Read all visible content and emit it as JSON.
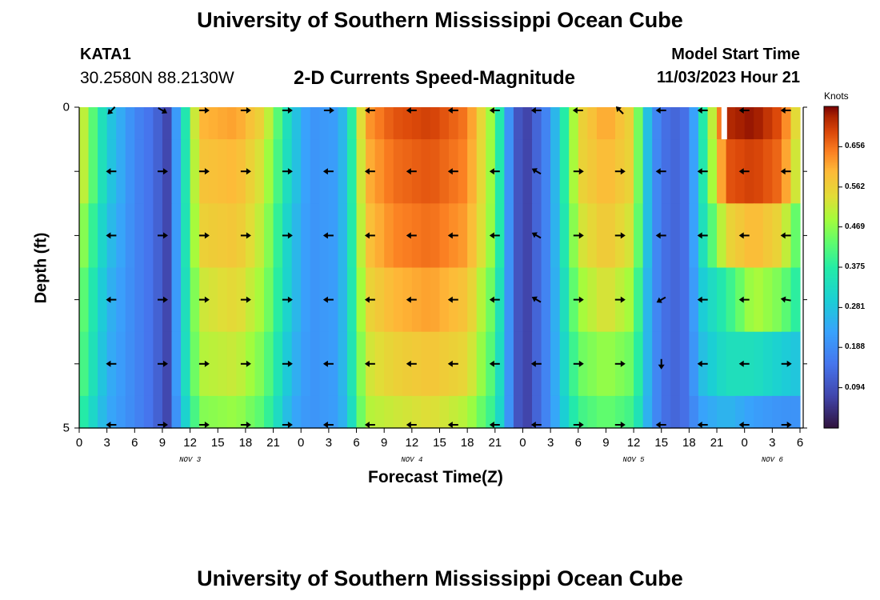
{
  "header": {
    "title": "University of Southern Mississippi Ocean Cube",
    "station_id": "KATA1",
    "station_coords": "30.2580N  88.2130W",
    "subtitle": "2-D Currents Speed-Magnitude",
    "model_start_label": "Model Start Time",
    "model_start_value": "11/03/2023 Hour 21"
  },
  "footer": {
    "title": "University of Southern Mississippi Ocean Cube"
  },
  "chart_data": {
    "type": "heatmap",
    "title": "2-D Currents Speed-Magnitude",
    "xlabel": "Forecast Time(Z)",
    "ylabel": "Depth (ft)",
    "x_hours_range": [
      0,
      78
    ],
    "x_tick_hours": [
      0,
      3,
      6,
      9,
      12,
      15,
      18,
      21,
      24,
      27,
      30,
      33,
      36,
      39,
      42,
      45,
      48,
      51,
      54,
      57,
      60,
      63,
      66,
      69,
      72,
      75,
      78
    ],
    "x_tick_labels": [
      "0",
      "3",
      "6",
      "9",
      "12",
      "15",
      "18",
      "21",
      "0",
      "3",
      "6",
      "9",
      "12",
      "15",
      "18",
      "21",
      "0",
      "3",
      "6",
      "9",
      "12",
      "15",
      "18",
      "21",
      "0",
      "3",
      "6"
    ],
    "date_labels": [
      {
        "hour": 12,
        "label": "NOV 3"
      },
      {
        "hour": 36,
        "label": "NOV 4"
      },
      {
        "hour": 60,
        "label": "NOV 5"
      },
      {
        "hour": 75,
        "label": "NOV 6"
      }
    ],
    "y_range_ft": [
      0,
      5
    ],
    "y_tick_labels": [
      {
        "depth": 0,
        "label": "0"
      },
      {
        "depth": 1,
        "label": ""
      },
      {
        "depth": 2,
        "label": ""
      },
      {
        "depth": 3,
        "label": ""
      },
      {
        "depth": 4,
        "label": ""
      },
      {
        "depth": 5,
        "label": "5"
      }
    ],
    "colorbar": {
      "unit": "Knots",
      "min": 0.0,
      "max": 0.75,
      "ticks": [
        0.656,
        0.562,
        0.469,
        0.375,
        0.281,
        0.188,
        0.094
      ],
      "tick_labels": [
        "0.656",
        "0.562",
        "0.469",
        "0.375",
        "0.281",
        "0.188",
        "0.094"
      ]
    },
    "speed_keyframes_hours": [
      0,
      3,
      6,
      8,
      9.5,
      11,
      13,
      17,
      20,
      23,
      25,
      28,
      29,
      31,
      34,
      38,
      42,
      45,
      46.5,
      48,
      51,
      54,
      57,
      60,
      61,
      62,
      64,
      66,
      67,
      70,
      73,
      76,
      78
    ],
    "speed_rows": [
      [
        0.55,
        0.3,
        0.18,
        0.14,
        0.08,
        0.28,
        0.6,
        0.62,
        0.55,
        0.3,
        0.2,
        0.22,
        0.3,
        0.62,
        0.68,
        0.7,
        0.65,
        0.45,
        0.2,
        0.05,
        0.2,
        0.55,
        0.62,
        0.55,
        0.35,
        0.2,
        0.12,
        0.15,
        0.3,
        0.72,
        0.74,
        0.68,
        0.5
      ],
      [
        0.55,
        0.3,
        0.18,
        0.14,
        0.08,
        0.28,
        0.58,
        0.6,
        0.52,
        0.3,
        0.2,
        0.22,
        0.3,
        0.6,
        0.66,
        0.68,
        0.64,
        0.45,
        0.2,
        0.05,
        0.2,
        0.55,
        0.6,
        0.55,
        0.35,
        0.2,
        0.12,
        0.15,
        0.3,
        0.68,
        0.7,
        0.66,
        0.48
      ],
      [
        0.5,
        0.28,
        0.18,
        0.14,
        0.08,
        0.28,
        0.56,
        0.58,
        0.5,
        0.28,
        0.2,
        0.22,
        0.3,
        0.58,
        0.64,
        0.66,
        0.62,
        0.45,
        0.2,
        0.05,
        0.2,
        0.52,
        0.58,
        0.52,
        0.35,
        0.2,
        0.12,
        0.15,
        0.3,
        0.55,
        0.6,
        0.55,
        0.4
      ],
      [
        0.46,
        0.26,
        0.18,
        0.14,
        0.08,
        0.28,
        0.52,
        0.55,
        0.48,
        0.28,
        0.2,
        0.22,
        0.3,
        0.55,
        0.6,
        0.62,
        0.58,
        0.42,
        0.2,
        0.05,
        0.2,
        0.48,
        0.54,
        0.48,
        0.32,
        0.2,
        0.12,
        0.15,
        0.28,
        0.38,
        0.5,
        0.45,
        0.36
      ],
      [
        0.44,
        0.25,
        0.18,
        0.14,
        0.08,
        0.28,
        0.5,
        0.52,
        0.45,
        0.26,
        0.2,
        0.22,
        0.3,
        0.52,
        0.56,
        0.58,
        0.55,
        0.4,
        0.2,
        0.05,
        0.2,
        0.44,
        0.48,
        0.44,
        0.32,
        0.2,
        0.12,
        0.15,
        0.26,
        0.34,
        0.34,
        0.3,
        0.28
      ],
      [
        0.4,
        0.24,
        0.18,
        0.14,
        0.08,
        0.26,
        0.46,
        0.48,
        0.42,
        0.24,
        0.2,
        0.22,
        0.28,
        0.5,
        0.52,
        0.54,
        0.5,
        0.38,
        0.2,
        0.05,
        0.2,
        0.4,
        0.44,
        0.4,
        0.3,
        0.2,
        0.12,
        0.15,
        0.22,
        0.26,
        0.22,
        0.2,
        0.2
      ]
    ],
    "white_gap": {
      "hour": 69.5,
      "row": 0
    },
    "arrow_hours": [
      3.5,
      9,
      13.5,
      18,
      22.5,
      27,
      31.5,
      36,
      40.5,
      45,
      49.5,
      54,
      58.5,
      63,
      67.5,
      72,
      76.5
    ],
    "arrow_row_depths": [
      0.05,
      1.0,
      2.0,
      3.0,
      4.0,
      4.95
    ],
    "arrow_direction_deg": [
      [
        -135,
        -30,
        0,
        0,
        0,
        0,
        180,
        180,
        180,
        180,
        180,
        180,
        135,
        180,
        180,
        180,
        180
      ],
      [
        180,
        0,
        0,
        0,
        0,
        180,
        180,
        180,
        180,
        180,
        150,
        0,
        0,
        180,
        180,
        180,
        180
      ],
      [
        180,
        0,
        0,
        0,
        0,
        180,
        180,
        180,
        180,
        180,
        150,
        0,
        0,
        180,
        180,
        180,
        180
      ],
      [
        180,
        0,
        0,
        0,
        0,
        180,
        180,
        180,
        180,
        180,
        150,
        0,
        0,
        210,
        180,
        180,
        170
      ],
      [
        180,
        0,
        0,
        0,
        0,
        180,
        180,
        180,
        180,
        180,
        180,
        0,
        0,
        270,
        180,
        180,
        0
      ],
      [
        180,
        0,
        0,
        0,
        0,
        180,
        180,
        180,
        180,
        180,
        180,
        0,
        0,
        180,
        180,
        180,
        0
      ]
    ]
  }
}
